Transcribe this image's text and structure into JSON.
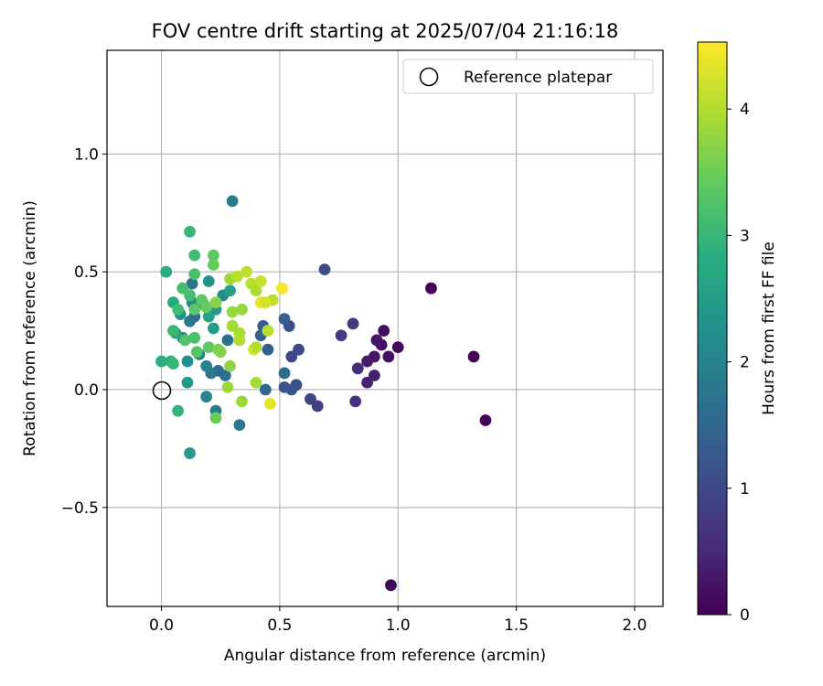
{
  "chart_data": {
    "type": "scatter",
    "title": "FOV centre drift starting at 2025/07/04 21:16:18",
    "xlabel": "Angular distance from reference (arcmin)",
    "ylabel": "Rotation from reference (arcmin)",
    "xlim": [
      -0.23,
      2.12
    ],
    "ylim": [
      -0.92,
      1.44
    ],
    "xticks": [
      0.0,
      0.5,
      1.0,
      1.5,
      2.0
    ],
    "xtick_labels": [
      "0.0",
      "0.5",
      "1.0",
      "1.5",
      "2.0"
    ],
    "yticks": [
      -0.5,
      0.0,
      0.5,
      1.0
    ],
    "ytick_labels": [
      "−0.5",
      "0.0",
      "0.5",
      "1.0"
    ],
    "grid": true,
    "legend": {
      "position": "top-right",
      "entries": [
        "Reference platepar"
      ]
    },
    "reference_point": {
      "x": 0.0,
      "y": 0.0
    },
    "colorbar": {
      "label": "Hours from first FF file",
      "range": [
        0,
        4.53
      ],
      "ticks": [
        0,
        1,
        2,
        3,
        4
      ],
      "tick_labels": [
        "0",
        "1",
        "2",
        "3",
        "4"
      ],
      "colormap": "viridis"
    },
    "points": [
      {
        "x": 1.14,
        "y": 0.43,
        "h": 0.03
      },
      {
        "x": 1.32,
        "y": 0.14,
        "h": 0.05
      },
      {
        "x": 1.37,
        "y": -0.13,
        "h": 0.07
      },
      {
        "x": 0.97,
        "y": -0.83,
        "h": 0.09
      },
      {
        "x": 1.0,
        "y": 0.18,
        "h": 0.12
      },
      {
        "x": 0.96,
        "y": 0.14,
        "h": 0.15
      },
      {
        "x": 0.93,
        "y": 0.19,
        "h": 0.18
      },
      {
        "x": 0.94,
        "y": 0.25,
        "h": 0.22
      },
      {
        "x": 0.91,
        "y": 0.21,
        "h": 0.25
      },
      {
        "x": 0.9,
        "y": 0.14,
        "h": 0.28
      },
      {
        "x": 0.87,
        "y": 0.12,
        "h": 0.33
      },
      {
        "x": 0.9,
        "y": 0.06,
        "h": 0.38
      },
      {
        "x": 0.87,
        "y": 0.03,
        "h": 0.45
      },
      {
        "x": 0.83,
        "y": 0.09,
        "h": 0.55
      },
      {
        "x": 0.82,
        "y": -0.05,
        "h": 0.62
      },
      {
        "x": 0.81,
        "y": 0.28,
        "h": 0.72
      },
      {
        "x": 0.76,
        "y": 0.23,
        "h": 0.78
      },
      {
        "x": 0.69,
        "y": 0.51,
        "h": 1.05
      },
      {
        "x": 0.66,
        "y": -0.07,
        "h": 0.82
      },
      {
        "x": 0.63,
        "y": -0.04,
        "h": 0.95
      },
      {
        "x": 0.58,
        "y": 0.17,
        "h": 1.0
      },
      {
        "x": 0.55,
        "y": 0.14,
        "h": 1.02
      },
      {
        "x": 0.57,
        "y": 0.02,
        "h": 1.1
      },
      {
        "x": 0.54,
        "y": 0.27,
        "h": 1.12
      },
      {
        "x": 0.52,
        "y": 0.3,
        "h": 1.35
      },
      {
        "x": 0.52,
        "y": 0.01,
        "h": 1.15
      },
      {
        "x": 0.55,
        "y": -0.0,
        "h": 1.2
      },
      {
        "x": 0.52,
        "y": 0.07,
        "h": 1.6
      },
      {
        "x": 0.45,
        "y": 0.17,
        "h": 1.4
      },
      {
        "x": 0.44,
        "y": -0.0,
        "h": 1.5
      },
      {
        "x": 0.43,
        "y": 0.27,
        "h": 1.25
      },
      {
        "x": 0.42,
        "y": 0.23,
        "h": 1.45
      },
      {
        "x": 0.33,
        "y": -0.15,
        "h": 1.8
      },
      {
        "x": 0.3,
        "y": 0.8,
        "h": 1.9
      },
      {
        "x": 0.28,
        "y": 0.21,
        "h": 1.7
      },
      {
        "x": 0.27,
        "y": 0.06,
        "h": 1.65
      },
      {
        "x": 0.24,
        "y": 0.08,
        "h": 1.6
      },
      {
        "x": 0.23,
        "y": -0.09,
        "h": 1.85
      },
      {
        "x": 0.21,
        "y": 0.07,
        "h": 1.75
      },
      {
        "x": 0.19,
        "y": 0.1,
        "h": 1.95
      },
      {
        "x": 0.19,
        "y": -0.03,
        "h": 2.05
      },
      {
        "x": 0.18,
        "y": 0.36,
        "h": 1.6
      },
      {
        "x": 0.16,
        "y": 0.15,
        "h": 2.0
      },
      {
        "x": 0.14,
        "y": 0.31,
        "h": 1.55
      },
      {
        "x": 0.13,
        "y": 0.45,
        "h": 1.7
      },
      {
        "x": 0.13,
        "y": 0.37,
        "h": 2.1
      },
      {
        "x": 0.12,
        "y": 0.29,
        "h": 1.8
      },
      {
        "x": 0.11,
        "y": 0.12,
        "h": 2.2
      },
      {
        "x": 0.11,
        "y": 0.03,
        "h": 2.4
      },
      {
        "x": 0.12,
        "y": -0.27,
        "h": 2.5
      },
      {
        "x": 0.09,
        "y": 0.22,
        "h": 2.25
      },
      {
        "x": 0.08,
        "y": 0.32,
        "h": 2.3
      },
      {
        "x": 0.26,
        "y": 0.4,
        "h": 2.15
      },
      {
        "x": 0.2,
        "y": 0.46,
        "h": 2.35
      },
      {
        "x": 0.2,
        "y": 0.31,
        "h": 2.6
      },
      {
        "x": 0.23,
        "y": 0.34,
        "h": 2.45
      },
      {
        "x": 0.22,
        "y": 0.26,
        "h": 2.5
      },
      {
        "x": 0.29,
        "y": 0.42,
        "h": 2.55
      },
      {
        "x": 0.05,
        "y": 0.37,
        "h": 2.7
      },
      {
        "x": 0.06,
        "y": 0.24,
        "h": 2.65
      },
      {
        "x": 0.02,
        "y": 0.5,
        "h": 2.8
      },
      {
        "x": 0.0,
        "y": 0.12,
        "h": 2.85
      },
      {
        "x": 0.04,
        "y": 0.12,
        "h": 2.9
      },
      {
        "x": 0.05,
        "y": 0.11,
        "h": 3.0
      },
      {
        "x": 0.07,
        "y": -0.09,
        "h": 2.95
      },
      {
        "x": 0.05,
        "y": 0.25,
        "h": 3.05
      },
      {
        "x": 0.07,
        "y": 0.34,
        "h": 3.1
      },
      {
        "x": 0.09,
        "y": 0.43,
        "h": 3.15
      },
      {
        "x": 0.12,
        "y": 0.67,
        "h": 3.0
      },
      {
        "x": 0.14,
        "y": 0.57,
        "h": 3.1
      },
      {
        "x": 0.14,
        "y": 0.49,
        "h": 3.2
      },
      {
        "x": 0.12,
        "y": 0.4,
        "h": 3.15
      },
      {
        "x": 0.1,
        "y": 0.21,
        "h": 3.25
      },
      {
        "x": 0.14,
        "y": 0.22,
        "h": 3.2
      },
      {
        "x": 0.14,
        "y": 0.34,
        "h": 3.35
      },
      {
        "x": 0.15,
        "y": 0.16,
        "h": 3.3
      },
      {
        "x": 0.17,
        "y": 0.38,
        "h": 3.35
      },
      {
        "x": 0.19,
        "y": 0.35,
        "h": 3.45
      },
      {
        "x": 0.2,
        "y": 0.18,
        "h": 3.4
      },
      {
        "x": 0.22,
        "y": 0.57,
        "h": 3.4
      },
      {
        "x": 0.22,
        "y": 0.53,
        "h": 3.45
      },
      {
        "x": 0.23,
        "y": -0.12,
        "h": 3.5
      },
      {
        "x": 0.24,
        "y": 0.17,
        "h": 3.6
      },
      {
        "x": 0.25,
        "y": 0.16,
        "h": 3.65
      },
      {
        "x": 0.23,
        "y": 0.37,
        "h": 3.7
      },
      {
        "x": 0.28,
        "y": 0.01,
        "h": 3.85
      },
      {
        "x": 0.29,
        "y": 0.1,
        "h": 3.75
      },
      {
        "x": 0.3,
        "y": 0.33,
        "h": 3.8
      },
      {
        "x": 0.29,
        "y": 0.47,
        "h": 3.85
      },
      {
        "x": 0.3,
        "y": 0.27,
        "h": 3.9
      },
      {
        "x": 0.33,
        "y": 0.24,
        "h": 3.95
      },
      {
        "x": 0.33,
        "y": 0.21,
        "h": 4.0
      },
      {
        "x": 0.32,
        "y": 0.48,
        "h": 4.05
      },
      {
        "x": 0.34,
        "y": 0.34,
        "h": 3.8
      },
      {
        "x": 0.34,
        "y": -0.05,
        "h": 3.85
      },
      {
        "x": 0.36,
        "y": 0.5,
        "h": 4.1
      },
      {
        "x": 0.38,
        "y": 0.45,
        "h": 4.05
      },
      {
        "x": 0.39,
        "y": 0.17,
        "h": 4.3
      },
      {
        "x": 0.4,
        "y": 0.18,
        "h": 4.0
      },
      {
        "x": 0.4,
        "y": 0.42,
        "h": 3.95
      },
      {
        "x": 0.4,
        "y": 0.03,
        "h": 3.9
      },
      {
        "x": 0.42,
        "y": 0.37,
        "h": 4.4
      },
      {
        "x": 0.42,
        "y": 0.46,
        "h": 4.15
      },
      {
        "x": 0.45,
        "y": 0.25,
        "h": 4.05
      },
      {
        "x": 0.47,
        "y": 0.38,
        "h": 4.1
      },
      {
        "x": 0.46,
        "y": -0.06,
        "h": 4.35
      },
      {
        "x": 0.51,
        "y": 0.43,
        "h": 4.5
      },
      {
        "x": 0.44,
        "y": 0.37,
        "h": 4.25
      }
    ]
  }
}
